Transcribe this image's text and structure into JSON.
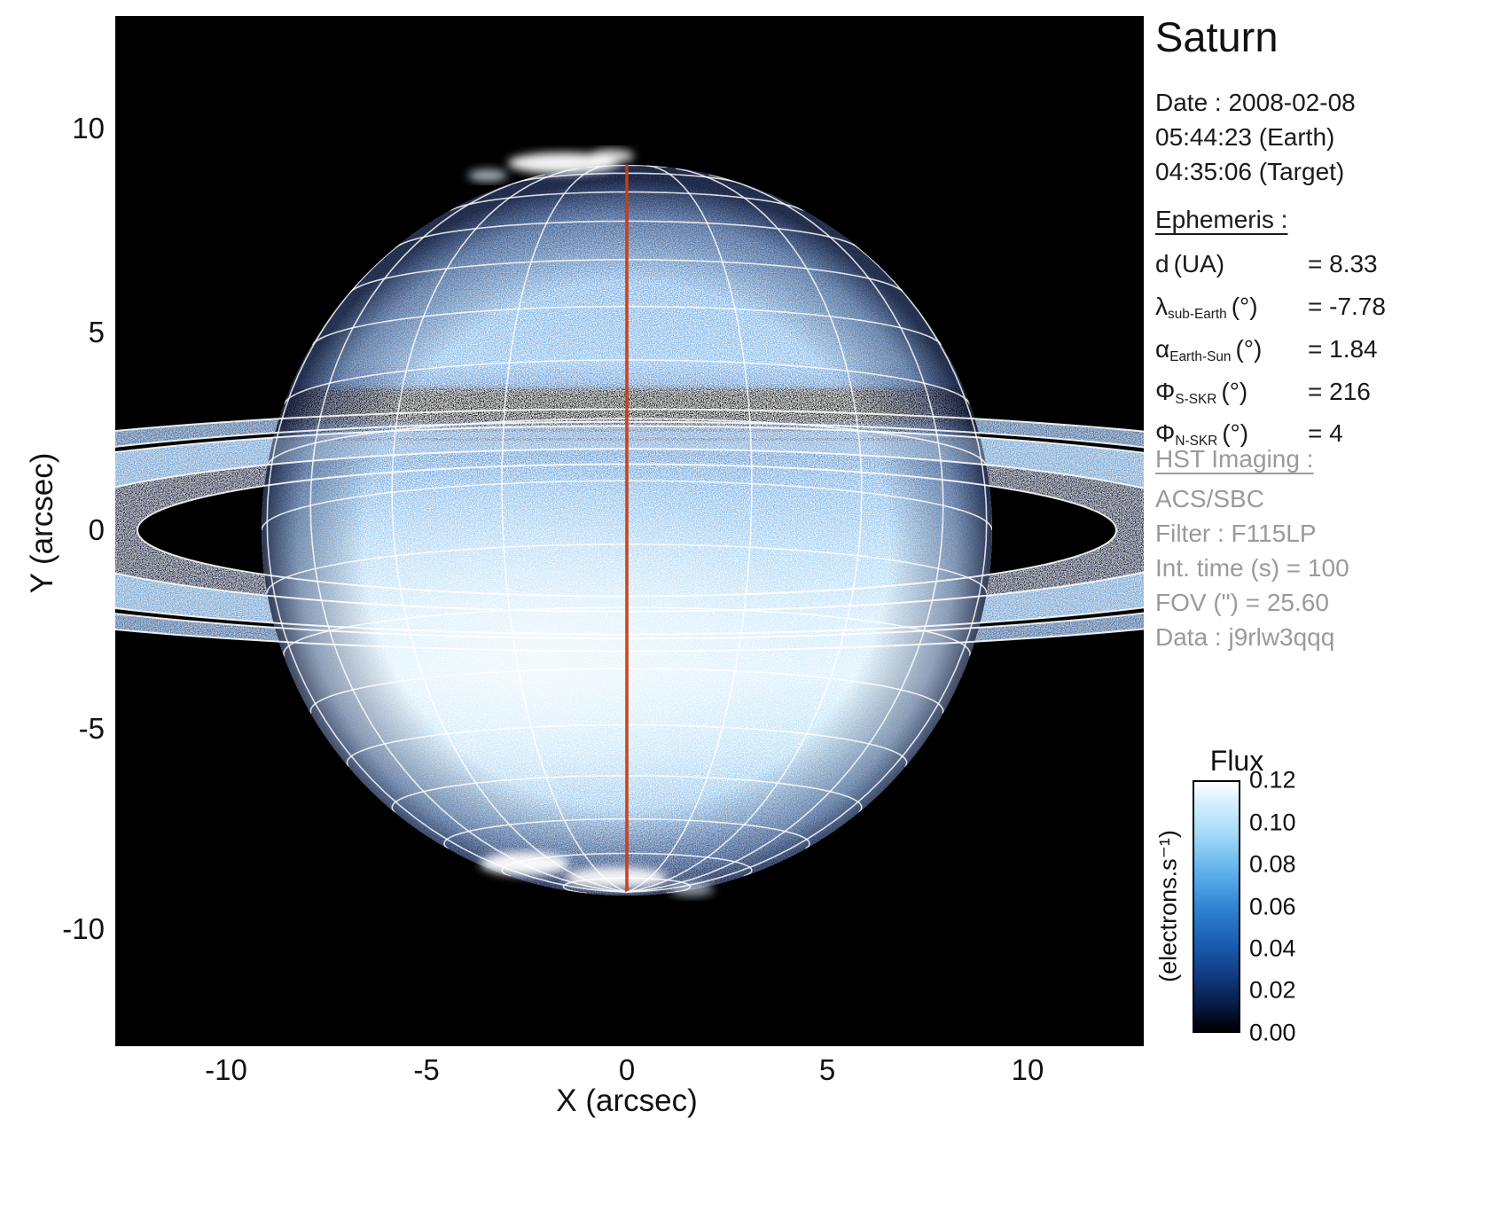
{
  "title": "Saturn",
  "observation": {
    "date_line": "Date : 2008-02-08",
    "earth_time": "05:44:23 (Earth)",
    "target_time": "04:35:06 (Target)"
  },
  "ephemeris": {
    "heading": "Ephemeris :",
    "rows": [
      {
        "sym": "d",
        "sub": "",
        "unit": "(UA)",
        "value": "= 8.33"
      },
      {
        "sym": "λ",
        "sub": "sub-Earth",
        "unit": "(°)",
        "value": "= -7.78"
      },
      {
        "sym": "α",
        "sub": "Earth-Sun",
        "unit": "(°)",
        "value": "= 1.84"
      },
      {
        "sym": "Φ",
        "sub": "S-SKR",
        "unit": "(°)",
        "value": "= 216"
      },
      {
        "sym": "Φ",
        "sub": "N-SKR",
        "unit": "(°)",
        "value": "= 4"
      }
    ]
  },
  "hst": {
    "heading": "HST Imaging :",
    "lines": [
      "ACS/SBC",
      "Filter : F115LP",
      "Int. time (s) = 100",
      "FOV (\") = 25.60",
      "Data : j9rlw3qqq"
    ]
  },
  "chart_data": {
    "type": "heatmap",
    "title": "Saturn",
    "xlabel": "X (arcsec)",
    "ylabel": "Y (arcsec)",
    "xlim": [
      -12.8,
      12.8
    ],
    "ylim": [
      -12.8,
      12.8
    ],
    "x_tick_labels": [
      "-10",
      "-5",
      "0",
      "5",
      "10"
    ],
    "y_tick_labels": [
      "10",
      "5",
      "0",
      "-5",
      "-10"
    ],
    "grid": "planetographic lat/lon overlay on planet disk, white; central meridian in red",
    "colorbar": {
      "title": "Flux",
      "units": "(electrons.s⁻¹)",
      "tick_labels": [
        "0.12",
        "0.10",
        "0.08",
        "0.06",
        "0.04",
        "0.02",
        "0.00"
      ],
      "range": [
        0.0,
        0.12
      ],
      "colormap": "black-blue-white"
    },
    "content": "Far-UV HST ACS/SBC image of Saturn: blue noisy disk brightest in southern hemisphere, dark ring-shadow band north of rings, edge-on-tilted rings crossing full image width with white ellipse outlines, auroral bright patches at both poles"
  }
}
